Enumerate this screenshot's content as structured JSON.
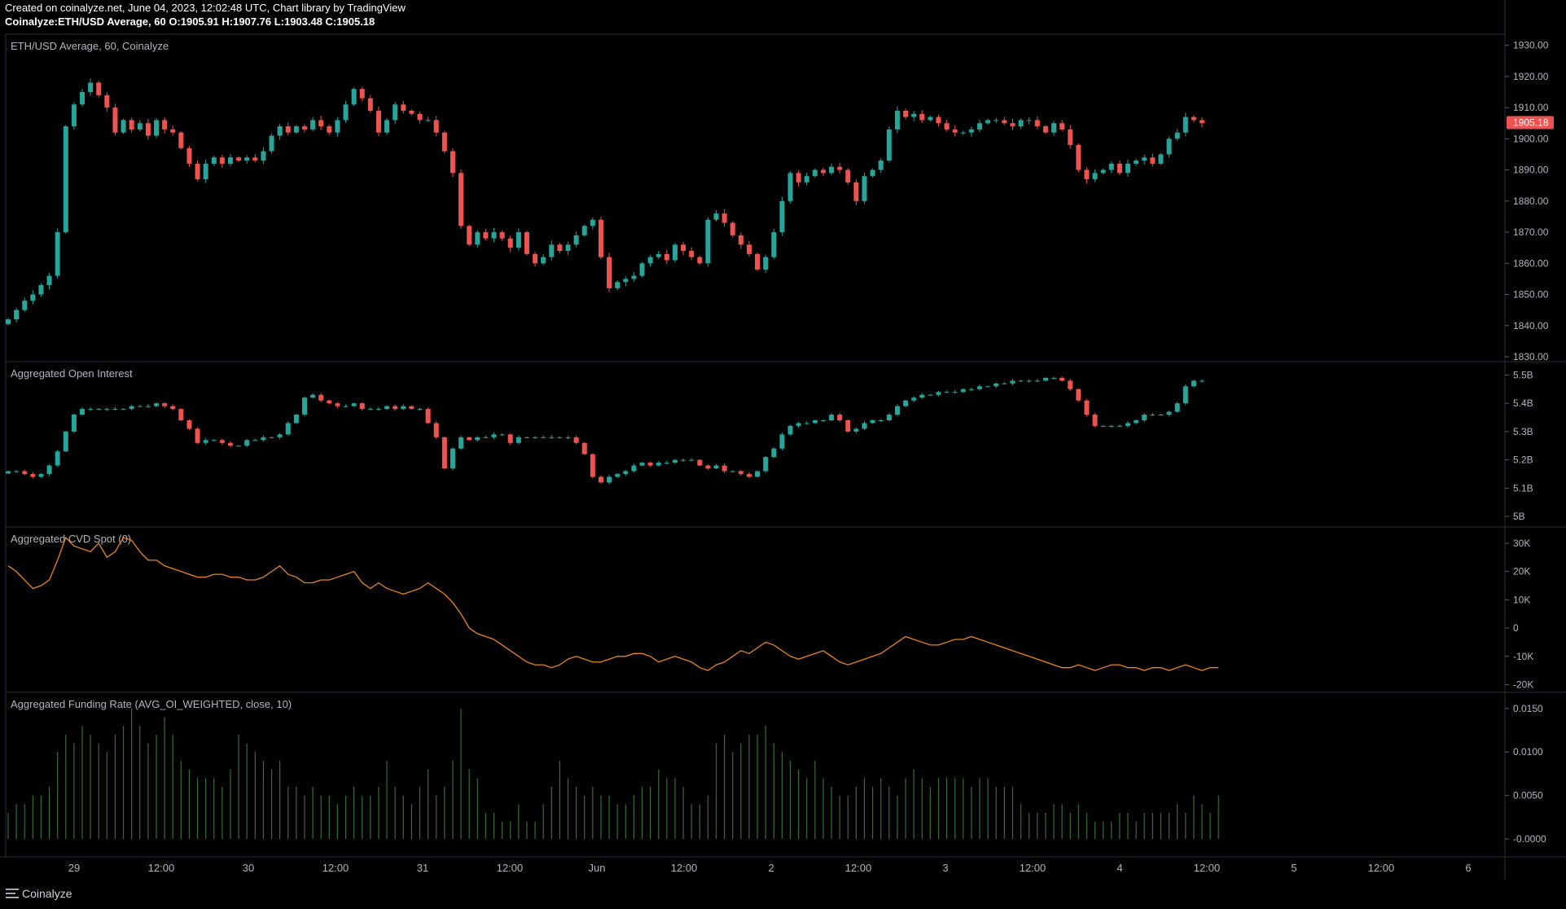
{
  "header": {
    "line1": "Created on coinalyze.net, June 04, 2023, 12:02:48 UTC, Chart library by TradingView",
    "line2": "Coinalyze:ETH/USD Average, 60 O:1905.91 H:1907.76 L:1903.48 C:1905.18"
  },
  "footer": {
    "brand": "Coinalyze"
  },
  "colors": {
    "up": "#26a69a",
    "down": "#ef5350",
    "cvd_line": "#e8861c",
    "funding": "#3a6b3a",
    "price_badge": "#ef5350",
    "pane_border": "#2a2e39"
  },
  "chart_data": [
    {
      "type": "candlestick",
      "title": "ETH/USD Average, 60, Coinalyze",
      "yticks": [
        "1930.00",
        "1920.00",
        "1910.00",
        "1900.00",
        "1890.00",
        "1880.00",
        "1870.00",
        "1860.00",
        "1850.00",
        "1840.00",
        "1830.00"
      ],
      "ylim": [
        1830,
        1932
      ],
      "last_price": "1905.18",
      "closes": [
        1842,
        1845,
        1848,
        1850,
        1853,
        1856,
        1870,
        1904,
        1911,
        1915,
        1918,
        1914,
        1910,
        1902,
        1906,
        1903,
        1905,
        1901,
        1906,
        1903,
        1902,
        1897,
        1892,
        1887,
        1892,
        1894,
        1892,
        1894,
        1893,
        1894,
        1893,
        1896,
        1901,
        1904,
        1902,
        1904,
        1903,
        1906,
        1904,
        1902,
        1906,
        1911,
        1916,
        1913,
        1909,
        1902,
        1906,
        1911,
        1909,
        1908,
        1906,
        1906,
        1902,
        1896,
        1889,
        1872,
        1866,
        1870,
        1868,
        1870,
        1868,
        1865,
        1870,
        1863,
        1860,
        1862,
        1866,
        1864,
        1866,
        1869,
        1872,
        1874,
        1862,
        1852,
        1854,
        1855,
        1856,
        1860,
        1862,
        1863,
        1861,
        1866,
        1864,
        1862,
        1860,
        1874,
        1876,
        1873,
        1869,
        1866,
        1863,
        1858,
        1862,
        1870,
        1880,
        1889,
        1886,
        1888,
        1890,
        1889,
        1891,
        1890,
        1886,
        1880,
        1888,
        1890,
        1893,
        1903,
        1909,
        1907,
        1908,
        1906,
        1907,
        1905,
        1903,
        1902,
        1902,
        1903,
        1905,
        1906,
        1906,
        1905,
        1904,
        1906,
        1906,
        1904,
        1902,
        1905,
        1903,
        1898,
        1890,
        1887,
        1889,
        1890,
        1892,
        1889,
        1892,
        1893,
        1894,
        1892,
        1895,
        1900,
        1902,
        1907,
        1906,
        1905
      ],
      "xticks": [
        "29",
        "12:00",
        "30",
        "12:00",
        "31",
        "12:00",
        "Jun",
        "12:00",
        "2",
        "12:00",
        "3",
        "12:00",
        "4",
        "12:00",
        "5",
        "12:00",
        "6"
      ]
    },
    {
      "type": "candlestick",
      "title": "Aggregated Open Interest",
      "yticks": [
        "5.5B",
        "5.4B",
        "5.3B",
        "5.2B",
        "5.1B",
        "5B"
      ],
      "ylim": [
        4.98,
        5.53
      ],
      "closes": [
        5.16,
        5.16,
        5.15,
        5.14,
        5.15,
        5.18,
        5.23,
        5.3,
        5.36,
        5.38,
        5.38,
        5.38,
        5.38,
        5.38,
        5.38,
        5.39,
        5.39,
        5.39,
        5.4,
        5.39,
        5.38,
        5.34,
        5.31,
        5.26,
        5.27,
        5.27,
        5.26,
        5.25,
        5.25,
        5.27,
        5.27,
        5.28,
        5.28,
        5.29,
        5.33,
        5.36,
        5.42,
        5.43,
        5.41,
        5.4,
        5.39,
        5.39,
        5.4,
        5.38,
        5.38,
        5.38,
        5.39,
        5.38,
        5.39,
        5.38,
        5.38,
        5.33,
        5.28,
        5.17,
        5.24,
        5.28,
        5.27,
        5.28,
        5.28,
        5.29,
        5.29,
        5.26,
        5.28,
        5.28,
        5.28,
        5.28,
        5.28,
        5.28,
        5.28,
        5.26,
        5.22,
        5.14,
        5.12,
        5.14,
        5.15,
        5.16,
        5.18,
        5.19,
        5.18,
        5.19,
        5.19,
        5.2,
        5.2,
        5.2,
        5.18,
        5.17,
        5.18,
        5.16,
        5.16,
        5.15,
        5.14,
        5.16,
        5.21,
        5.24,
        5.29,
        5.32,
        5.33,
        5.33,
        5.34,
        5.34,
        5.36,
        5.34,
        5.3,
        5.31,
        5.33,
        5.34,
        5.34,
        5.36,
        5.39,
        5.41,
        5.42,
        5.43,
        5.43,
        5.44,
        5.44,
        5.44,
        5.45,
        5.45,
        5.46,
        5.46,
        5.47,
        5.47,
        5.48,
        5.48,
        5.48,
        5.48,
        5.49,
        5.49,
        5.48,
        5.45,
        5.41,
        5.36,
        5.32,
        5.32,
        5.32,
        5.32,
        5.33,
        5.34,
        5.36,
        5.36,
        5.36,
        5.37,
        5.4,
        5.46,
        5.48,
        5.48
      ]
    },
    {
      "type": "line",
      "title": "Aggregated CVD Spot (0)",
      "yticks": [
        "30K",
        "20K",
        "10K",
        "0",
        "-10K",
        "-20K"
      ],
      "ylim": [
        -21000,
        34000
      ],
      "values": [
        22000,
        20000,
        17000,
        14000,
        15000,
        17000,
        24000,
        32000,
        29000,
        28000,
        27000,
        30000,
        25000,
        27000,
        32000,
        31000,
        27000,
        24000,
        24000,
        22000,
        21000,
        20000,
        19000,
        18000,
        18000,
        19000,
        19000,
        18000,
        18000,
        17000,
        17000,
        18000,
        20000,
        22000,
        19000,
        18000,
        16000,
        16000,
        17000,
        17000,
        18000,
        19000,
        20000,
        16000,
        14000,
        16000,
        14000,
        13000,
        12000,
        13000,
        14000,
        16000,
        14000,
        12000,
        9000,
        5000,
        0,
        -2000,
        -3000,
        -4000,
        -6000,
        -8000,
        -10000,
        -12000,
        -13000,
        -13000,
        -14000,
        -13000,
        -11000,
        -10000,
        -11000,
        -12000,
        -12000,
        -11000,
        -10000,
        -10000,
        -9000,
        -9000,
        -10000,
        -12000,
        -11000,
        -10000,
        -11000,
        -12000,
        -14000,
        -15000,
        -13000,
        -12000,
        -10000,
        -8000,
        -9000,
        -7000,
        -5000,
        -6000,
        -8000,
        -10000,
        -11000,
        -10000,
        -9000,
        -8000,
        -10000,
        -12000,
        -13000,
        -12000,
        -11000,
        -10000,
        -9000,
        -7000,
        -5000,
        -3000,
        -4000,
        -5000,
        -6000,
        -6000,
        -5000,
        -4000,
        -4000,
        -3000,
        -4000,
        -5000,
        -6000,
        -7000,
        -8000,
        -9000,
        -10000,
        -11000,
        -12000,
        -13000,
        -14000,
        -14000,
        -13000,
        -14000,
        -15000,
        -14000,
        -13000,
        -13000,
        -14000,
        -14000,
        -15000,
        -14000,
        -14000,
        -15000,
        -14000,
        -13000,
        -14000,
        -15000,
        -14000,
        -14000
      ]
    },
    {
      "type": "bar",
      "title": "Aggregated Funding Rate (AVG_OI_WEIGHTED, close, 10)",
      "yticks": [
        "0.0150",
        "0.0100",
        "0.0050",
        "-0.0000"
      ],
      "ylim": [
        -0.0015,
        0.0163
      ],
      "values": [
        0.003,
        0.004,
        0.004,
        0.005,
        0.005,
        0.006,
        0.01,
        0.012,
        0.011,
        0.013,
        0.012,
        0.011,
        0.01,
        0.012,
        0.013,
        0.015,
        0.013,
        0.011,
        0.012,
        0.014,
        0.012,
        0.009,
        0.008,
        0.007,
        0.007,
        0.007,
        0.006,
        0.008,
        0.012,
        0.011,
        0.01,
        0.009,
        0.008,
        0.009,
        0.006,
        0.006,
        0.005,
        0.006,
        0.005,
        0.005,
        0.004,
        0.005,
        0.006,
        0.005,
        0.005,
        0.006,
        0.009,
        0.006,
        0.005,
        0.004,
        0.006,
        0.008,
        0.005,
        0.006,
        0.009,
        0.015,
        0.008,
        0.007,
        0.003,
        0.003,
        0.002,
        0.002,
        0.004,
        0.002,
        0.002,
        0.004,
        0.006,
        0.009,
        0.007,
        0.006,
        0.005,
        0.006,
        0.005,
        0.005,
        0.004,
        0.004,
        0.005,
        0.006,
        0.006,
        0.008,
        0.007,
        0.007,
        0.006,
        0.004,
        0.004,
        0.005,
        0.011,
        0.012,
        0.01,
        0.011,
        0.012,
        0.012,
        0.013,
        0.011,
        0.01,
        0.009,
        0.008,
        0.007,
        0.009,
        0.007,
        0.006,
        0.005,
        0.005,
        0.006,
        0.007,
        0.006,
        0.007,
        0.006,
        0.005,
        0.007,
        0.008,
        0.007,
        0.006,
        0.007,
        0.007,
        0.007,
        0.007,
        0.006,
        0.007,
        0.007,
        0.006,
        0.006,
        0.006,
        0.004,
        0.003,
        0.003,
        0.003,
        0.004,
        0.004,
        0.003,
        0.004,
        0.003,
        0.002,
        0.002,
        0.002,
        0.003,
        0.003,
        0.002,
        0.003,
        0.003,
        0.003,
        0.003,
        0.004,
        0.003,
        0.005,
        0.004,
        0.003,
        0.005
      ]
    }
  ]
}
